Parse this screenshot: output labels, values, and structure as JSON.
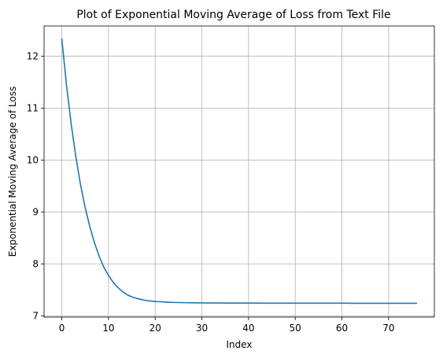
{
  "chart_data": {
    "type": "line",
    "title": "Plot of Exponential Moving Average of Loss from Text File",
    "xlabel": "Index",
    "ylabel": "Exponential Moving Average of Loss",
    "xlim": [
      -3.8,
      79.8
    ],
    "ylim": [
      6.98,
      12.58
    ],
    "xticks": [
      0,
      10,
      20,
      30,
      40,
      50,
      60,
      70
    ],
    "yticks": [
      7,
      8,
      9,
      10,
      11,
      12
    ],
    "grid": true,
    "legend": "none",
    "series": [
      {
        "color": "#1f77b4",
        "x": [
          0,
          1,
          2,
          3,
          4,
          5,
          6,
          7,
          8,
          9,
          10,
          11,
          12,
          13,
          14,
          15,
          16,
          17,
          18,
          19,
          20,
          21,
          22,
          23,
          24,
          25,
          26,
          27,
          28,
          29,
          30,
          31,
          32,
          33,
          34,
          35,
          36,
          37,
          38,
          39,
          40,
          41,
          42,
          43,
          44,
          45,
          46,
          47,
          48,
          49,
          50,
          51,
          52,
          53,
          54,
          55,
          56,
          57,
          58,
          59,
          60,
          61,
          62,
          63,
          64,
          65,
          66,
          67,
          68,
          69,
          70,
          71,
          72,
          73,
          74,
          75,
          76
        ],
        "y": [
          12.33,
          11.45,
          10.7,
          10.07,
          9.53,
          9.09,
          8.72,
          8.41,
          8.15,
          7.94,
          7.78,
          7.65,
          7.55,
          7.47,
          7.41,
          7.37,
          7.34,
          7.32,
          7.3,
          7.29,
          7.28,
          7.275,
          7.27,
          7.265,
          7.262,
          7.26,
          7.258,
          7.256,
          7.255,
          7.254,
          7.253,
          7.252,
          7.252,
          7.251,
          7.251,
          7.25,
          7.25,
          7.25,
          7.249,
          7.249,
          7.249,
          7.249,
          7.249,
          7.248,
          7.248,
          7.248,
          7.248,
          7.248,
          7.248,
          7.248,
          7.247,
          7.247,
          7.247,
          7.247,
          7.247,
          7.247,
          7.247,
          7.247,
          7.247,
          7.247,
          7.247,
          7.247,
          7.246,
          7.246,
          7.246,
          7.246,
          7.246,
          7.246,
          7.246,
          7.246,
          7.246,
          7.246,
          7.246,
          7.246,
          7.246,
          7.246,
          7.246
        ]
      }
    ]
  }
}
